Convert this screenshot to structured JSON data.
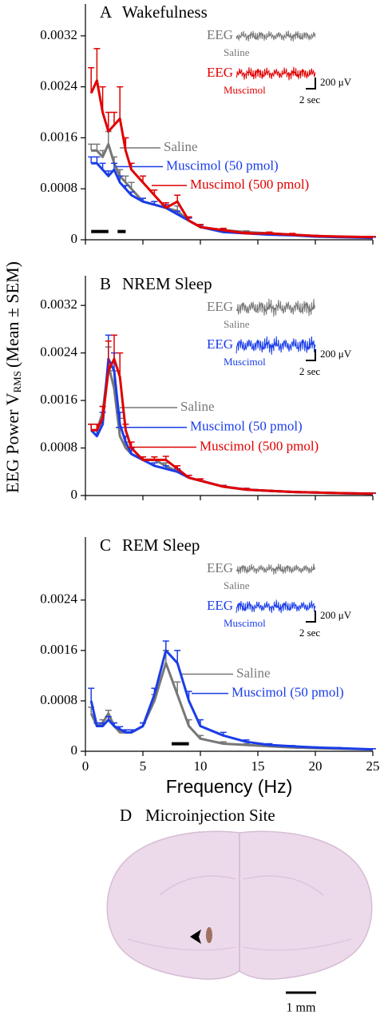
{
  "y_label": [
    "EEG Power V",
    "RMS",
    "(Mean ± SEM)"
  ],
  "chart_data": [
    {
      "type": "line",
      "panel": "A",
      "title": "Wakefulness",
      "x": [
        0.5,
        1,
        1.5,
        2,
        2.5,
        3,
        3.5,
        4,
        5,
        6,
        7,
        8,
        9,
        10,
        12,
        14,
        16,
        18,
        20,
        22,
        25
      ],
      "series": [
        {
          "name": "Saline",
          "color": "#777777",
          "values": [
            0.0014,
            0.0014,
            0.0013,
            0.0015,
            0.0012,
            0.001,
            0.0009,
            0.0008,
            0.0006,
            0.00055,
            0.0005,
            0.00045,
            0.0003,
            0.0002,
            0.00015,
            0.00012,
            0.0001,
            8e-05,
            6e-05,
            5e-05,
            4e-05
          ],
          "errors": [
            0.0001,
            0.0001,
            0.0001,
            0.0002,
            0.0001,
            0.0001,
            0.0001,
            0.0001,
            5e-05,
            5e-05,
            5e-05,
            8e-05,
            5e-05,
            3e-05,
            2e-05,
            2e-05,
            2e-05,
            1e-05,
            1e-05,
            1e-05,
            1e-05
          ]
        },
        {
          "name": "Muscimol (50 pmol)",
          "color": "#1a3de8",
          "values": [
            0.0012,
            0.0012,
            0.0011,
            0.001,
            0.0011,
            0.0009,
            0.0008,
            0.0007,
            0.0006,
            0.00055,
            0.0005,
            0.0004,
            0.0003,
            0.0002,
            0.00012,
            0.0001,
            8e-05,
            7e-05,
            5e-05,
            4e-05,
            3e-05
          ],
          "errors": [
            0.0001,
            0.0001,
            0.0001,
            8e-05,
            0.0001,
            0.0001,
            5e-05,
            5e-05,
            5e-05,
            5e-05,
            5e-05,
            5e-05,
            4e-05,
            3e-05,
            2e-05,
            2e-05,
            1e-05,
            1e-05,
            1e-05,
            1e-05,
            1e-05
          ]
        },
        {
          "name": "Muscimol (500 pmol)",
          "color": "#e00000",
          "values": [
            0.0023,
            0.0025,
            0.002,
            0.0017,
            0.0018,
            0.0019,
            0.0014,
            0.0011,
            0.0009,
            0.0007,
            0.0005,
            0.0006,
            0.0003,
            0.0002,
            0.00015,
            0.0001,
            0.0001,
            8e-05,
            6e-05,
            5e-05,
            4e-05
          ],
          "errors": [
            0.0004,
            0.0005,
            0.0004,
            0.0003,
            0.0002,
            0.0005,
            0.0002,
            0.0001,
            0.0001,
            8e-05,
            8e-05,
            0.0001,
            6e-05,
            4e-05,
            3e-05,
            2e-05,
            2e-05,
            2e-05,
            1e-05,
            1e-05,
            1e-05
          ]
        }
      ],
      "xlim": [
        0,
        25
      ],
      "xticks": [
        0,
        5,
        10,
        15,
        20,
        25
      ],
      "show_xtick_labels": false,
      "ylim": [
        0,
        0.0037
      ],
      "yticks": [
        0,
        0.0008,
        0.0016,
        0.0024,
        0.0032
      ],
      "significance_bars": [
        [
          0.5,
          2
        ],
        [
          2.8,
          3.5
        ]
      ],
      "inset": {
        "eeg": "EEG",
        "traces": [
          {
            "name": "Saline",
            "color": "#777777"
          },
          {
            "name": "Muscimol",
            "color": "#e00000"
          }
        ],
        "amplitude": "200 μV",
        "duration": "2 sec"
      }
    },
    {
      "type": "line",
      "panel": "B",
      "title": "NREM Sleep",
      "x": [
        0.5,
        1,
        1.5,
        2,
        2.5,
        3,
        3.5,
        4,
        5,
        6,
        7,
        8,
        9,
        10,
        12,
        14,
        16,
        18,
        20,
        22,
        25
      ],
      "series": [
        {
          "name": "Saline",
          "color": "#777777",
          "values": [
            0.0011,
            0.0011,
            0.0014,
            0.0022,
            0.0018,
            0.001,
            0.0008,
            0.0007,
            0.0006,
            0.0006,
            0.0005,
            0.0004,
            0.0003,
            0.00025,
            0.00015,
            0.0001,
            8e-05,
            6e-05,
            5e-05,
            4e-05,
            3e-05
          ],
          "errors": [
            0.0001,
            0.0001,
            0.0001,
            0.0003,
            0.0003,
            0.0003,
            0.0001,
            0.0001,
            5e-05,
            5e-05,
            5e-05,
            5e-05,
            4e-05,
            3e-05,
            2e-05,
            2e-05,
            1e-05,
            1e-05,
            1e-05,
            1e-05,
            1e-05
          ]
        },
        {
          "name": "Muscimol (50 pmol)",
          "color": "#1a3de8",
          "values": [
            0.0011,
            0.001,
            0.0012,
            0.0023,
            0.0021,
            0.0012,
            0.0009,
            0.0007,
            0.0006,
            0.0005,
            0.00045,
            0.0004,
            0.0003,
            0.00025,
            0.00015,
            0.0001,
            8e-05,
            6e-05,
            5e-05,
            4e-05,
            3e-05
          ],
          "errors": [
            0.0001,
            0.0001,
            0.0002,
            0.0004,
            0.0003,
            0.0002,
            0.0001,
            0.0001,
            5e-05,
            5e-05,
            5e-05,
            5e-05,
            4e-05,
            3e-05,
            2e-05,
            2e-05,
            1e-05,
            1e-05,
            1e-05,
            1e-05,
            1e-05
          ]
        },
        {
          "name": "Muscimol (500 pmol)",
          "color": "#e00000",
          "values": [
            0.0011,
            0.0011,
            0.0013,
            0.0021,
            0.0023,
            0.002,
            0.0011,
            0.0008,
            0.0006,
            0.0006,
            0.0006,
            0.00045,
            0.0003,
            0.00025,
            0.00015,
            0.0001,
            8e-05,
            6e-05,
            5e-05,
            4e-05,
            3e-05
          ],
          "errors": [
            0.0001,
            0.0001,
            0.0002,
            0.0005,
            0.0004,
            0.0004,
            0.0001,
            0.0001,
            5e-05,
            5e-05,
            6e-05,
            5e-05,
            4e-05,
            3e-05,
            2e-05,
            2e-05,
            1e-05,
            1e-05,
            1e-05,
            1e-05,
            1e-05
          ]
        }
      ],
      "xlim": [
        0,
        25
      ],
      "xticks": [
        0,
        5,
        10,
        15,
        20,
        25
      ],
      "show_xtick_labels": false,
      "ylim": [
        0,
        0.0037
      ],
      "yticks": [
        0,
        0.0008,
        0.0016,
        0.0024,
        0.0032
      ],
      "inset": {
        "eeg": "EEG",
        "traces": [
          {
            "name": "Saline",
            "color": "#777777"
          },
          {
            "name": "Muscimol",
            "color": "#1a3de8"
          }
        ],
        "amplitude": "200 μV",
        "duration": "2 sec"
      }
    },
    {
      "type": "line",
      "panel": "C",
      "title": "REM Sleep",
      "x_label": "Frequency (Hz)",
      "x": [
        0.5,
        1,
        1.5,
        2,
        2.5,
        3,
        3.5,
        4,
        5,
        6,
        7,
        8,
        9,
        10,
        12,
        14,
        16,
        18,
        20,
        22,
        25
      ],
      "series": [
        {
          "name": "Saline",
          "color": "#777777",
          "values": [
            0.0006,
            0.0004,
            0.00045,
            0.0006,
            0.0004,
            0.0003,
            0.0003,
            0.0003,
            0.0004,
            0.0008,
            0.0014,
            0.0009,
            0.0004,
            0.0002,
            0.00012,
            0.0001,
            8e-05,
            6e-05,
            5e-05,
            4e-05,
            3e-05
          ],
          "errors": [
            0.0001,
            5e-05,
            5e-05,
            5e-05,
            5e-05,
            4e-05,
            4e-05,
            4e-05,
            5e-05,
            0.0001,
            0.0002,
            0.0002,
            0.0001,
            5e-05,
            3e-05,
            2e-05,
            1e-05,
            1e-05,
            1e-05,
            1e-05,
            1e-05
          ]
        },
        {
          "name": "Muscimol (50 pmol)",
          "color": "#1a3de8",
          "values": [
            0.0008,
            0.0004,
            0.0004,
            0.0005,
            0.0004,
            0.00035,
            0.0003,
            0.0003,
            0.0004,
            0.0009,
            0.0016,
            0.0014,
            0.0008,
            0.0004,
            0.00025,
            0.00015,
            0.0001,
            8e-05,
            6e-05,
            5e-05,
            3e-05
          ],
          "errors": [
            0.0002,
            5e-05,
            5e-05,
            5e-05,
            5e-05,
            4e-05,
            4e-05,
            4e-05,
            5e-05,
            0.0001,
            0.00015,
            0.0002,
            0.00015,
            0.0001,
            5e-05,
            3e-05,
            2e-05,
            1e-05,
            1e-05,
            1e-05,
            1e-05
          ]
        }
      ],
      "xlim": [
        0,
        25
      ],
      "xticks": [
        0,
        5,
        10,
        15,
        20,
        25
      ],
      "show_xtick_labels": true,
      "ylim": [
        0,
        0.0034
      ],
      "yticks": [
        0,
        0.0008,
        0.0016,
        0.0024
      ],
      "significance_bars": [
        [
          7.5,
          9
        ]
      ],
      "inset": {
        "eeg": "EEG",
        "traces": [
          {
            "name": "Saline",
            "color": "#777777"
          },
          {
            "name": "Muscimol",
            "color": "#1a3de8"
          }
        ],
        "amplitude": "200 μV",
        "duration": "2 sec"
      }
    }
  ],
  "histology": {
    "panel": "D",
    "title": "Microinjection Site",
    "scale": "1 mm"
  }
}
